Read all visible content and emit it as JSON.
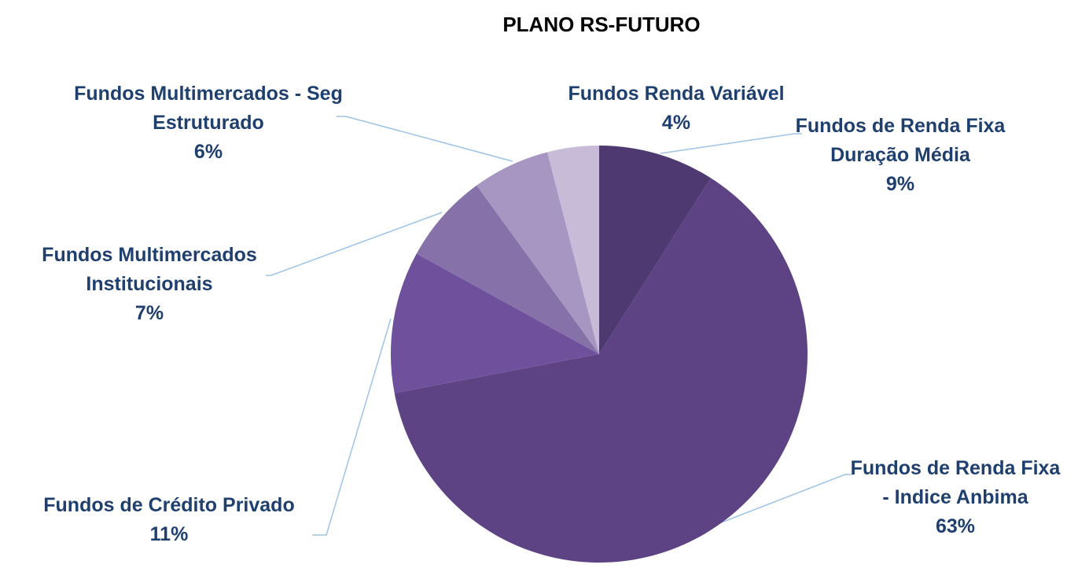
{
  "chart_data": {
    "type": "pie",
    "title": "PLANO RS-FUTURO",
    "categories": [
      "Fundos de Renda Fixa Duração Média",
      "Fundos de Renda Fixa - Indice Anbima",
      "Fundos de Crédito Privado",
      "Fundos Multimercados Institucionais",
      "Fundos Multimercados - Seg Estruturado",
      "Fundos Renda Variável"
    ],
    "values": [
      9,
      63,
      11,
      7,
      6,
      4
    ],
    "value_labels": [
      "9%",
      "63%",
      "11%",
      "7%",
      "6%",
      "4%"
    ],
    "colors": [
      "#4e3970",
      "#5d4384",
      "#6f509c",
      "#8672a8",
      "#a796c1",
      "#c7bbd8"
    ]
  }
}
